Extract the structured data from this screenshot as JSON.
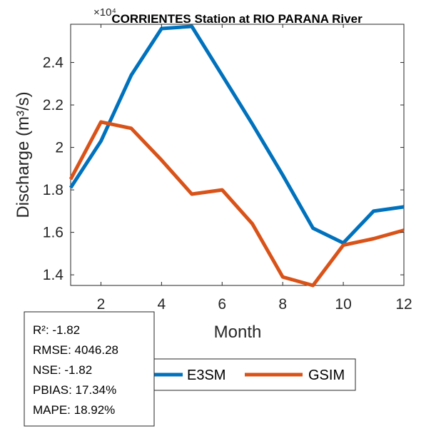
{
  "chart_data": {
    "type": "line",
    "title": "CORRIENTES  Station at  RIO PARANA  River",
    "xlabel": "Month",
    "ylabel": "Discharge (m³/s)",
    "y_exponent_label": "×10⁴",
    "x": [
      1,
      2,
      3,
      4,
      5,
      6,
      7,
      8,
      9,
      10,
      11,
      12
    ],
    "xlim": [
      1,
      12
    ],
    "ylim": [
      1.35,
      2.58
    ],
    "x_ticks": [
      2,
      4,
      6,
      8,
      10,
      12
    ],
    "y_ticks": [
      1.4,
      1.6,
      1.8,
      2,
      2.2,
      2.4
    ],
    "x_tick_labels": [
      "2",
      "4",
      "6",
      "8",
      "10",
      "12"
    ],
    "y_tick_labels": [
      "1.4",
      "1.6",
      "1.8",
      "2",
      "2.2",
      "2.4"
    ],
    "grid": false,
    "legend_position": "bottom-right",
    "series": [
      {
        "name": "E3SM",
        "color": "#0072BD",
        "values": [
          1.81,
          2.03,
          2.34,
          2.56,
          2.57,
          2.34,
          2.11,
          1.87,
          1.62,
          1.55,
          1.7,
          1.72
        ]
      },
      {
        "name": "GSIM",
        "color": "#D95319",
        "values": [
          1.85,
          2.12,
          2.09,
          1.94,
          1.78,
          1.8,
          1.64,
          1.39,
          1.35,
          1.54,
          1.57,
          1.61
        ]
      }
    ],
    "stats_box": {
      "lines": [
        "R²: -1.82",
        "RMSE: 4046.28",
        "NSE: -1.82",
        "PBIAS: 17.34%",
        "MAPE: 18.92%"
      ]
    }
  }
}
